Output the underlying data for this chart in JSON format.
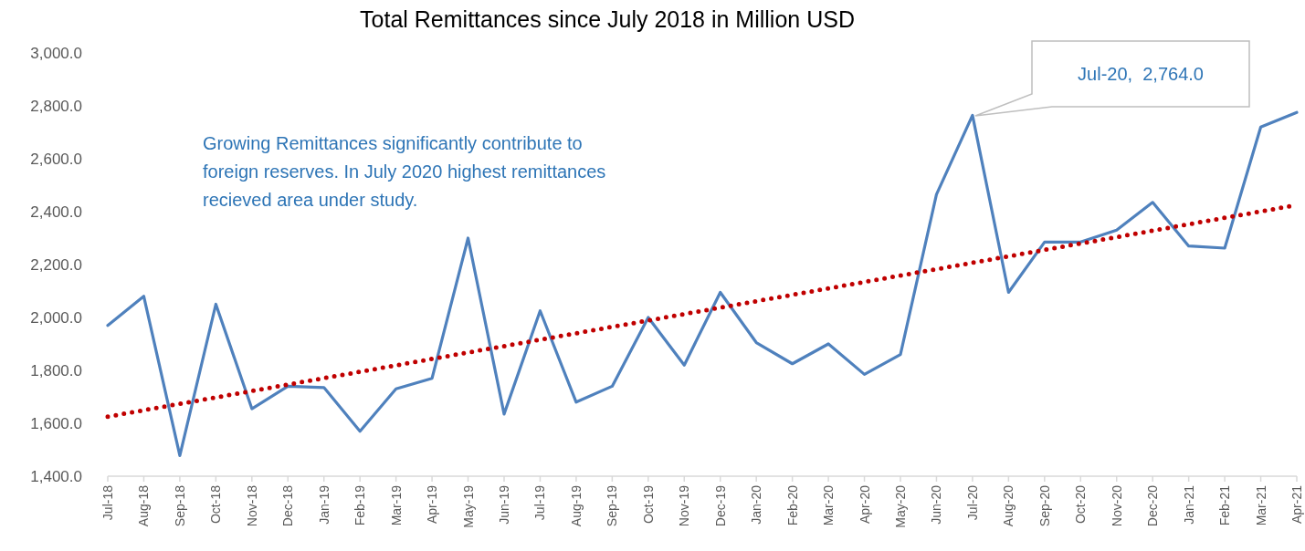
{
  "chart_data": {
    "type": "line",
    "title": "Total Remittances since July 2018 in Million USD",
    "categories": [
      "Jul-18",
      "Aug-18",
      "Sep-18",
      "Oct-18",
      "Nov-18",
      "Dec-18",
      "Jan-19",
      "Feb-19",
      "Mar-19",
      "Apr-19",
      "May-19",
      "Jun-19",
      "Jul-19",
      "Aug-19",
      "Sep-19",
      "Oct-19",
      "Nov-19",
      "Dec-19",
      "Jan-20",
      "Feb-20",
      "Mar-20",
      "Apr-20",
      "May-20",
      "Jun-20",
      "Jul-20",
      "Aug-20",
      "Sep-20",
      "Oct-20",
      "Nov-20",
      "Dec-20",
      "Jan-21",
      "Feb-21",
      "Mar-21",
      "Apr-21"
    ],
    "series": [
      {
        "color": "#4f81bd",
        "values": [
          1970,
          2080,
          1478,
          2050,
          1655,
          1740,
          1735,
          1570,
          1730,
          1770,
          2300,
          1635,
          2025,
          1680,
          1740,
          2000,
          1820,
          2095,
          1905,
          1825,
          1900,
          1785,
          1860,
          2465,
          2764,
          2095,
          2285,
          2285,
          2330,
          2435,
          2270,
          2262,
          2720,
          2775
        ]
      },
      {
        "type": "line",
        "color": "#c00000",
        "line_style": "dotted",
        "x": [
          "Jul-18",
          "Apr-21"
        ],
        "values": [
          1625,
          2425
        ]
      }
    ],
    "ylim": [
      1400,
      3000
    ],
    "yticks": [
      {
        "value": 1400,
        "label": "1,400.0"
      },
      {
        "value": 1600,
        "label": "1,600.0"
      },
      {
        "value": 1800,
        "label": "1,800.0"
      },
      {
        "value": 2000,
        "label": "2,000.0"
      },
      {
        "value": 2200,
        "label": "2,200.0"
      },
      {
        "value": 2400,
        "label": "2,400.0"
      },
      {
        "value": 2600,
        "label": "2,600.0"
      },
      {
        "value": 2800,
        "label": "2,800.0"
      },
      {
        "value": 3000,
        "label": "3,000.0"
      }
    ],
    "annotations": [
      "Growing Remittances significantly contribute to foreign reserves. In July 2020 highest remittances recieved area under study.",
      "Jul-20,  2,764.0"
    ],
    "grid": false,
    "marker": "none",
    "line_style": "solid"
  }
}
